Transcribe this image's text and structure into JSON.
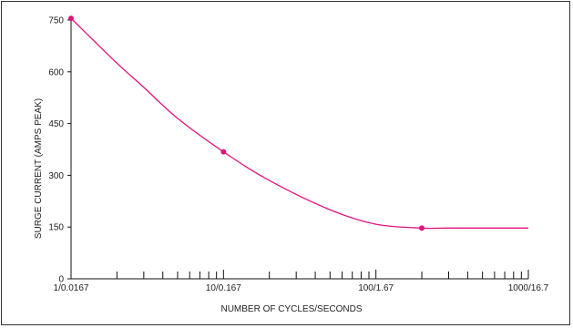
{
  "chart_data": {
    "type": "line",
    "title": "",
    "xlabel": "NUMBER OF CYCLES/SECONDS",
    "ylabel": "SURGE CURRENT (AMPS PEAK)",
    "x_scale": "log",
    "xlim": [
      1,
      1000
    ],
    "ylim": [
      0,
      750
    ],
    "x_tick_labels": [
      {
        "cycles": 1,
        "label": "1/0.0167"
      },
      {
        "cycles": 10,
        "label": "10/0.167"
      },
      {
        "cycles": 100,
        "label": "100/1.67"
      },
      {
        "cycles": 1000,
        "label": "1000/16.7"
      }
    ],
    "y_ticks": [
      0,
      150,
      300,
      450,
      600,
      750
    ],
    "grid": false,
    "legend": "none",
    "line_color": "#e0147c",
    "series": [
      {
        "x": [
          1,
          2,
          3,
          5,
          10,
          20,
          50,
          100,
          200,
          300,
          1000
        ],
        "y": [
          755,
          625,
          555,
          465,
          368,
          285,
          200,
          158,
          147,
          147,
          147
        ]
      }
    ],
    "markers": [
      {
        "x": 1,
        "y": 755
      },
      {
        "x": 10,
        "y": 368
      },
      {
        "x": 200,
        "y": 147
      }
    ]
  }
}
